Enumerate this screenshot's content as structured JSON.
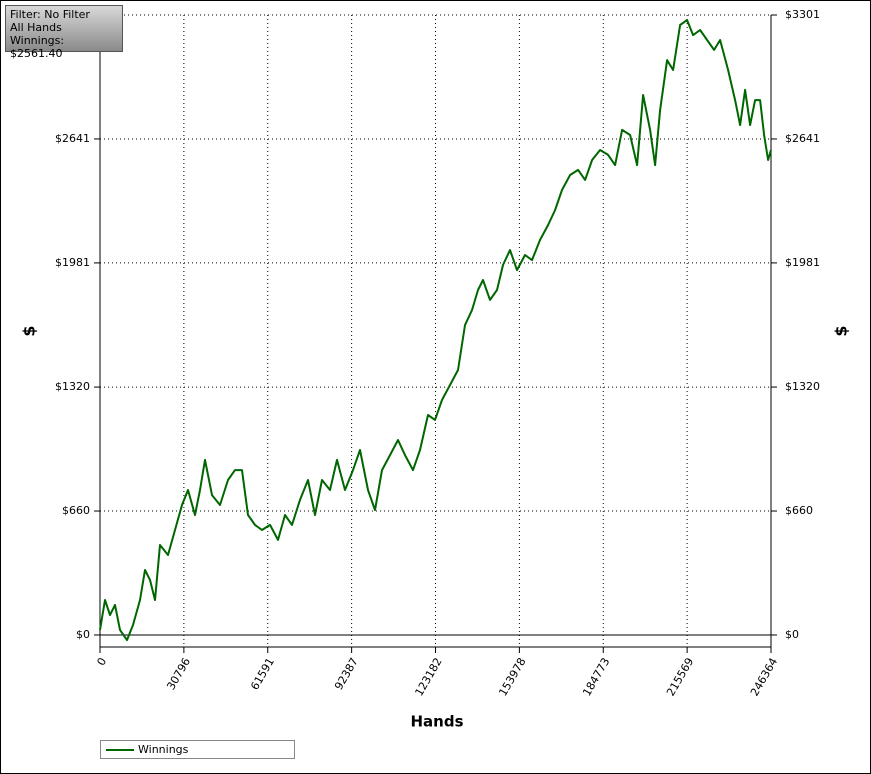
{
  "info": {
    "filter": "Filter: No Filter",
    "hands": "All Hands",
    "winnings": "Winnings: $2561.40"
  },
  "chart_data": {
    "type": "line",
    "x_label": "Hands",
    "y_label": "$",
    "y2_label": "$",
    "xlim": [
      0,
      246364
    ],
    "xticks": [
      0,
      30796,
      61591,
      92387,
      123182,
      153978,
      184773,
      215569,
      246364
    ],
    "ylim": [
      -64,
      3301
    ],
    "yticks": [
      {
        "value": 0,
        "label": "$0"
      },
      {
        "value": 660,
        "label": "$660"
      },
      {
        "value": 1320,
        "label": "$1320"
      },
      {
        "value": 1981,
        "label": "$1981"
      },
      {
        "value": 2641,
        "label": "$2641"
      },
      {
        "value": 3301,
        "label": "$3301"
      }
    ],
    "grid": true,
    "series": [
      {
        "name": "Winnings",
        "color": "#006600",
        "x": [
          0,
          1836,
          3672,
          5508,
          7344,
          9914,
          12118,
          14688,
          16524,
          18360,
          20196,
          22032,
          24970,
          27540,
          30110,
          32314,
          34884,
          36720,
          38556,
          41126,
          44064,
          47002,
          49572,
          52142,
          54346,
          56916,
          59486,
          62424,
          65362,
          67932,
          70502,
          73440,
          76376,
          78948,
          81518,
          84456,
          87026,
          89964,
          92902,
          95472,
          98410,
          100980,
          103550,
          106488,
          109426,
          111996,
          114934,
          117504,
          120440,
          123012,
          125582,
          128520,
          131458,
          134028,
          136598,
          138802,
          140638,
          143208,
          145778,
          147982,
          150552,
          153122,
          156060,
          158630,
          161568,
          164506,
          167076,
          169646,
          172584,
          175522,
          178092,
          180662,
          183600,
          186538,
          189108,
          191678,
          194616,
          197186,
          199390,
          201960,
          203796,
          205632,
          208202,
          210406,
          212976,
          215546,
          217750,
          220320,
          222890,
          225460,
          227664,
          230602,
          233172,
          235008,
          236844,
          238680,
          240516,
          242352,
          243820,
          245290,
          246364
        ],
        "values": [
          27,
          186,
          106,
          160,
          27,
          -27,
          53,
          186,
          346,
          293,
          186,
          479,
          426,
          559,
          692,
          772,
          639,
          772,
          932,
          745,
          692,
          825,
          878,
          878,
          639,
          586,
          559,
          586,
          506,
          639,
          586,
          719,
          825,
          639,
          825,
          772,
          932,
          772,
          878,
          985,
          772,
          665,
          878,
          958,
          1038,
          958,
          878,
          985,
          1171,
          1145,
          1251,
          1331,
          1411,
          1650,
          1730,
          1837,
          1890,
          1784,
          1837,
          1970,
          2050,
          1943,
          2023,
          1996,
          2103,
          2183,
          2263,
          2369,
          2449,
          2476,
          2423,
          2529,
          2582,
          2556,
          2502,
          2689,
          2662,
          2502,
          2875,
          2689,
          2502,
          2795,
          3061,
          3008,
          3248,
          3274,
          3194,
          3221,
          3168,
          3115,
          3168,
          3008,
          2848,
          2715,
          2902,
          2715,
          2848,
          2848,
          2662,
          2529,
          2582
        ]
      }
    ]
  }
}
